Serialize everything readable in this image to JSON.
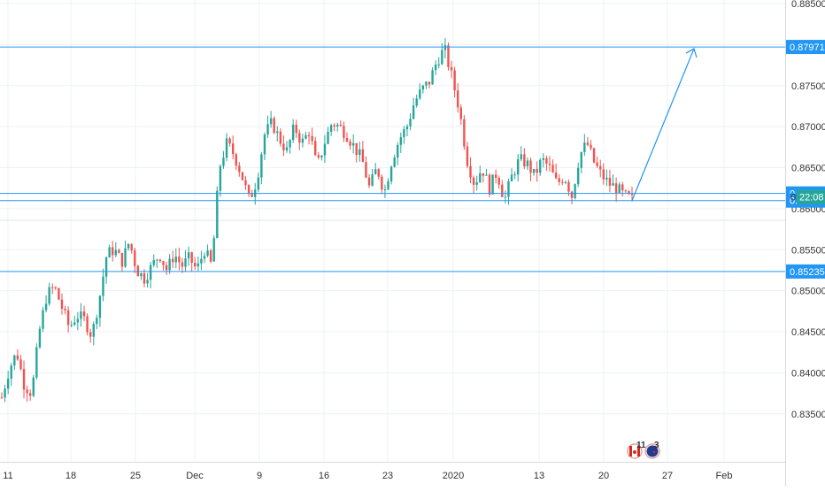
{
  "chart_data": {
    "type": "candlestick",
    "title": "",
    "xlabel": "",
    "ylabel": "",
    "ylim": [
      0.8325,
      0.885
    ],
    "y_ticks": [
      "0.88500",
      "0.88000",
      "0.87500",
      "0.87000",
      "0.86500",
      "0.86000",
      "0.85500",
      "0.85000",
      "0.84500",
      "0.84000",
      "0.83500"
    ],
    "x_ticks": [
      "11",
      "18",
      "25",
      "Dec",
      "9",
      "16",
      "23",
      "2020",
      "13",
      "20",
      "27",
      "Feb"
    ],
    "grid": true,
    "colors": {
      "up": "#26a69a",
      "down": "#ef5350",
      "level": "#2196f3",
      "bg": "#ffffff",
      "grid": "#eef1f4",
      "axis_text": "#333333"
    },
    "horizontal_levels": [
      {
        "value": 0.87971,
        "label": "0.87971"
      },
      {
        "value": 0.86186,
        "label": "0.86186"
      },
      {
        "value": 0.86099,
        "label": "0.86099"
      },
      {
        "value": 0.85235,
        "label": "0.85235"
      }
    ],
    "last_price_label": "22:08",
    "price_label_prefix": "0",
    "projection_arrow": {
      "from": 0.86099,
      "to": 0.87971
    },
    "event_badges": [
      {
        "count": "11",
        "icon": "canada-flag-icon"
      },
      {
        "count": "3",
        "icon": "new-zealand-flag-icon"
      }
    ],
    "path": [
      0.837,
      0.8405,
      0.8425,
      0.8385,
      0.8375,
      0.845,
      0.8495,
      0.8505,
      0.848,
      0.8455,
      0.847,
      0.8465,
      0.8445,
      0.849,
      0.8545,
      0.855,
      0.8535,
      0.856,
      0.8525,
      0.8515,
      0.853,
      0.8545,
      0.8525,
      0.8545,
      0.853,
      0.854,
      0.8525,
      0.855,
      0.853,
      0.865,
      0.868,
      0.8665,
      0.864,
      0.861,
      0.8635,
      0.869,
      0.8705,
      0.8685,
      0.867,
      0.87,
      0.868,
      0.8695,
      0.865,
      0.868,
      0.8705,
      0.87,
      0.869,
      0.8675,
      0.866,
      0.8625,
      0.865,
      0.862,
      0.866,
      0.8685,
      0.87,
      0.873,
      0.8745,
      0.8755,
      0.878,
      0.8795,
      0.876,
      0.872,
      0.866,
      0.863,
      0.865,
      0.8625,
      0.8645,
      0.861,
      0.864,
      0.866,
      0.8655,
      0.864,
      0.866,
      0.865,
      0.863,
      0.864,
      0.8615,
      0.8665,
      0.868,
      0.8655,
      0.864,
      0.863,
      0.8625,
      0.8615,
      0.8612
    ]
  }
}
